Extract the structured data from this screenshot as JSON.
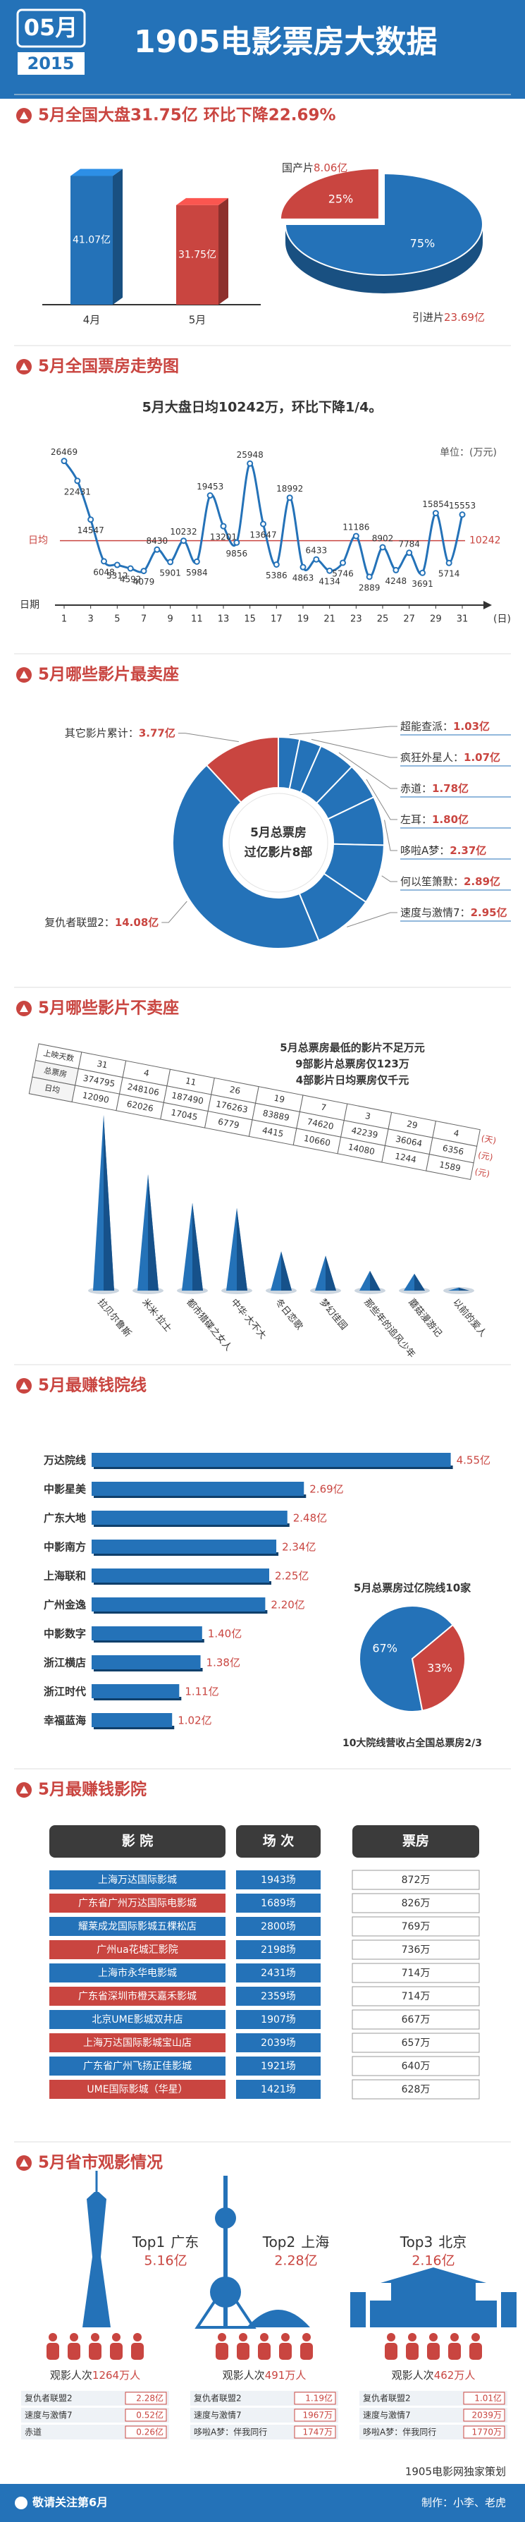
{
  "header": {
    "month": "05月",
    "year": "2015",
    "title": "1905电影票房大数据"
  },
  "chart_data": [
    {
      "type": "bar",
      "title": "5月全国大盘31.75亿 环比下降22.69%",
      "categories": [
        "4月",
        "5月"
      ],
      "values": [
        41.07,
        31.75
      ],
      "value_labels": [
        "41.07亿",
        "31.75亿"
      ],
      "colors": [
        "#2472b8",
        "#c94540"
      ],
      "ylim": [
        0,
        45
      ]
    },
    {
      "type": "pie",
      "categories": [
        "国产片",
        "引进片"
      ],
      "values": [
        25,
        75
      ],
      "value_labels": [
        "25%",
        "75%"
      ],
      "amount_labels": [
        "8.06亿",
        "23.69亿"
      ],
      "colors": [
        "#c94540",
        "#2472b8"
      ]
    },
    {
      "type": "line",
      "title": "5月全国票房走势图",
      "subtitle": "5月大盘日均10242万，环比下降1/4。",
      "unit_label": "单位：(万元)",
      "xlabel": "日期",
      "xunit": "(日)",
      "x": [
        1,
        2,
        3,
        4,
        5,
        6,
        7,
        8,
        9,
        10,
        11,
        12,
        13,
        14,
        15,
        16,
        17,
        18,
        19,
        20,
        21,
        22,
        23,
        24,
        25,
        26,
        27,
        28,
        29,
        30,
        31
      ],
      "values": [
        26469,
        22431,
        14547,
        6048,
        5312,
        4592,
        4079,
        8430,
        5901,
        10232,
        5984,
        19453,
        13201,
        9856,
        25948,
        13647,
        5386,
        18992,
        4863,
        6433,
        4134,
        5746,
        11186,
        2889,
        8902,
        4248,
        7784,
        3691,
        15854,
        5714,
        15553
      ],
      "xlim": [
        1,
        31
      ],
      "xticks": [
        1,
        3,
        5,
        7,
        9,
        11,
        13,
        15,
        17,
        19,
        21,
        23,
        25,
        27,
        29,
        31
      ],
      "ylim": [
        0,
        28000
      ],
      "reference": {
        "label": "日均",
        "value": 10242
      },
      "color": "#2472b8",
      "reference_color": "#c94540"
    },
    {
      "type": "donut",
      "title": "5月哪些影片最卖座",
      "center_text": [
        "5月总票房",
        "过亿影片8部"
      ],
      "categories": [
        "超能查派",
        "疯狂外星人",
        "赤道",
        "左耳",
        "哆啦A梦",
        "何以笙箫默",
        "速度与激情7",
        "复仇者联盟2",
        "其它影片累计"
      ],
      "values": [
        1.03,
        1.07,
        1.78,
        1.8,
        2.37,
        2.89,
        2.95,
        14.08,
        3.77
      ],
      "value_labels": [
        "1.03亿",
        "1.07亿",
        "1.78亿",
        "1.80亿",
        "2.37亿",
        "2.89亿",
        "2.95亿",
        "14.08亿",
        "3.77亿"
      ],
      "label_separator": "：",
      "colors": [
        "#2472b8",
        "#2472b8",
        "#2472b8",
        "#2472b8",
        "#2472b8",
        "#2472b8",
        "#2472b8",
        "#2472b8",
        "#c94540"
      ]
    },
    {
      "type": "spike",
      "title": "5月哪些影片不卖座",
      "categories": [
        "拉贝尔鲁斯",
        "米米·拉士",
        "都市猎碟之女人",
        "中华·大不大",
        "冬日恋歌",
        "梦幻佳园",
        "那些年的追风少年",
        "蘑菇漫游记",
        "以前的爱人"
      ],
      "row_labels": [
        "上映天数",
        "总票房",
        "日均"
      ],
      "row_units": [
        "(天)",
        "(元)",
        "(元)"
      ],
      "days": [
        31,
        4,
        11,
        26,
        19,
        7,
        3,
        29,
        4
      ],
      "values": [
        374795,
        248106,
        187490,
        176263,
        83889,
        74620,
        42239,
        36064,
        6356
      ],
      "daily": [
        12090,
        62026,
        17045,
        6779,
        4415,
        10660,
        14080,
        1244,
        1589
      ],
      "notes": [
        "5月总票房最低的影片不足万元",
        "9部影片总票房仅123万",
        "4部影片日均票房仅千元"
      ],
      "ylim": [
        0,
        400000
      ],
      "color": "#2472b8"
    },
    {
      "type": "hbar",
      "title": "5月最赚钱院线",
      "categories": [
        "万达院线",
        "中影星美",
        "广东大地",
        "中影南方",
        "上海联和",
        "广州金逸",
        "中影数字",
        "浙江横店",
        "浙江时代",
        "幸福蓝海"
      ],
      "values": [
        4.55,
        2.69,
        2.48,
        2.34,
        2.25,
        2.2,
        1.4,
        1.38,
        1.11,
        1.02
      ],
      "value_labels": [
        "4.55亿",
        "2.69亿",
        "2.48亿",
        "2.34亿",
        "2.25亿",
        "2.20亿",
        "1.40亿",
        "1.38亿",
        "1.11亿",
        "1.02亿"
      ],
      "xlim": [
        0,
        5
      ],
      "color": "#2472b8"
    },
    {
      "type": "pie",
      "title": "5月总票房过亿院线10家",
      "caption": "10大院线营收占全国总票房2/3",
      "values": [
        67,
        33
      ],
      "value_labels": [
        "67%",
        "33%"
      ],
      "colors": [
        "#2472b8",
        "#c94540"
      ]
    }
  ],
  "cinema_ranking": {
    "title": "5月最赚钱影院",
    "headers": [
      "影 院",
      "场 次",
      "票房"
    ],
    "rows": [
      [
        "上海万达国际影城",
        "1943场",
        "872万"
      ],
      [
        "广东省广州万达国际电影城",
        "1689场",
        "826万"
      ],
      [
        "耀莱成龙国际影城五棵松店",
        "2800场",
        "769万"
      ],
      [
        "广州ua花城汇影院",
        "2198场",
        "736万"
      ],
      [
        "上海市永华电影城",
        "2431场",
        "714万"
      ],
      [
        "广东省深圳市橙天嘉禾影城",
        "2359场",
        "714万"
      ],
      [
        "北京UME影城双井店",
        "1907场",
        "667万"
      ],
      [
        "上海万达国际影城宝山店",
        "2039场",
        "657万"
      ],
      [
        "广东省广州飞扬正佳影城",
        "1921场",
        "640万"
      ],
      [
        "UME国际影城（华星）",
        "1421场",
        "628万"
      ]
    ]
  },
  "province_stats": {
    "title": "5月省市观影情况",
    "items": [
      {
        "rank": "Top1",
        "name": "广东",
        "box_office": "5.16亿",
        "audience_label": "观影人次",
        "audience": "1264万人",
        "films": [
          [
            "复仇者联盟2",
            "2.28亿"
          ],
          [
            "速度与激情7",
            "0.52亿"
          ],
          [
            "赤道",
            "0.26亿"
          ]
        ]
      },
      {
        "rank": "Top2",
        "name": "上海",
        "box_office": "2.28亿",
        "audience_label": "观影人次",
        "audience": "491万人",
        "films": [
          [
            "复仇者联盟2",
            "1.19亿"
          ],
          [
            "速度与激情7",
            "1967万"
          ],
          [
            "哆啦A梦：伴我同行",
            "1747万"
          ]
        ]
      },
      {
        "rank": "Top3",
        "name": "北京",
        "box_office": "2.16亿",
        "audience_label": "观影人次",
        "audience": "462万人",
        "films": [
          [
            "复仇者联盟2",
            "1.01亿"
          ],
          [
            "速度与激情7",
            "2039万"
          ],
          [
            "哆啦A梦：伴我同行",
            "1770万"
          ]
        ]
      }
    ]
  },
  "footer": {
    "follow": "敬请关注第6月",
    "credit": "1905电影网独家策划",
    "makers": "制作：小李、老虎"
  }
}
